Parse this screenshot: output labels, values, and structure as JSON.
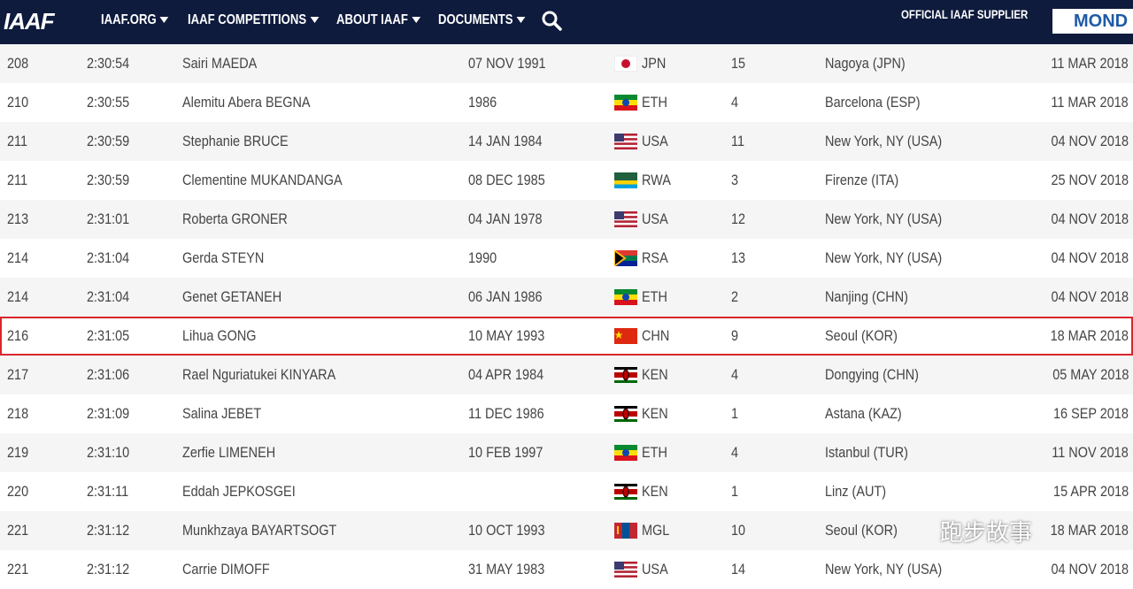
{
  "header": {
    "logo": "IAAF",
    "nav": [
      "IAAF.ORG",
      "IAAF COMPETITIONS",
      "ABOUT IAAF",
      "DOCUMENTS"
    ],
    "supplier": "OFFICIAL IAAF SUPPLIER",
    "sponsor": "MOND"
  },
  "table": {
    "rows": [
      [
        "208",
        "2:30:54",
        "Sairi MAEDA",
        "07 NOV 1991",
        "JPN",
        "15",
        "Nagoya (JPN)",
        "11 MAR 2018"
      ],
      [
        "210",
        "2:30:55",
        "Alemitu Abera BEGNA",
        "1986",
        "ETH",
        "4",
        "Barcelona (ESP)",
        "11 MAR 2018"
      ],
      [
        "211",
        "2:30:59",
        "Stephanie BRUCE",
        "14 JAN 1984",
        "USA",
        "11",
        "New York, NY (USA)",
        "04 NOV 2018"
      ],
      [
        "211",
        "2:30:59",
        "Clementine MUKANDANGA",
        "08 DEC 1985",
        "RWA",
        "3",
        "Firenze (ITA)",
        "25 NOV 2018"
      ],
      [
        "213",
        "2:31:01",
        "Roberta GRONER",
        "04 JAN 1978",
        "USA",
        "12",
        "New York, NY (USA)",
        "04 NOV 2018"
      ],
      [
        "214",
        "2:31:04",
        "Gerda STEYN",
        "1990",
        "RSA",
        "13",
        "New York, NY (USA)",
        "04 NOV 2018"
      ],
      [
        "214",
        "2:31:04",
        "Genet GETANEH",
        "06 JAN 1986",
        "ETH",
        "2",
        "Nanjing (CHN)",
        "04 NOV 2018"
      ],
      [
        "216",
        "2:31:05",
        "Lihua GONG",
        "10 MAY 1993",
        "CHN",
        "9",
        "Seoul (KOR)",
        "18 MAR 2018"
      ],
      [
        "217",
        "2:31:06",
        "Rael Nguriatukei KINYARA",
        "04 APR 1984",
        "KEN",
        "4",
        "Dongying (CHN)",
        "05 MAY 2018"
      ],
      [
        "218",
        "2:31:09",
        "Salina JEBET",
        "11 DEC 1986",
        "KEN",
        "1",
        "Astana (KAZ)",
        "16 SEP 2018"
      ],
      [
        "219",
        "2:31:10",
        "Zerfie LIMENEH",
        "10 FEB 1997",
        "ETH",
        "4",
        "Istanbul (TUR)",
        "11 NOV 2018"
      ],
      [
        "220",
        "2:31:11",
        "Eddah JEPKOSGEI",
        null,
        "KEN",
        "1",
        "Linz (AUT)",
        "15 APR 2018"
      ],
      [
        "221",
        "2:31:12",
        "Munkhzaya BAYARTSOGT",
        "10 OCT 1993",
        "MGL",
        "10",
        "Seoul (KOR)",
        "18 MAR 2018"
      ],
      [
        "221",
        "2:31:12",
        "Carrie DIMOFF",
        "31 MAY 1983",
        "USA",
        "14",
        "New York, NY (USA)",
        "04 NOV 2018"
      ]
    ]
  },
  "watermark": "跑步故事"
}
